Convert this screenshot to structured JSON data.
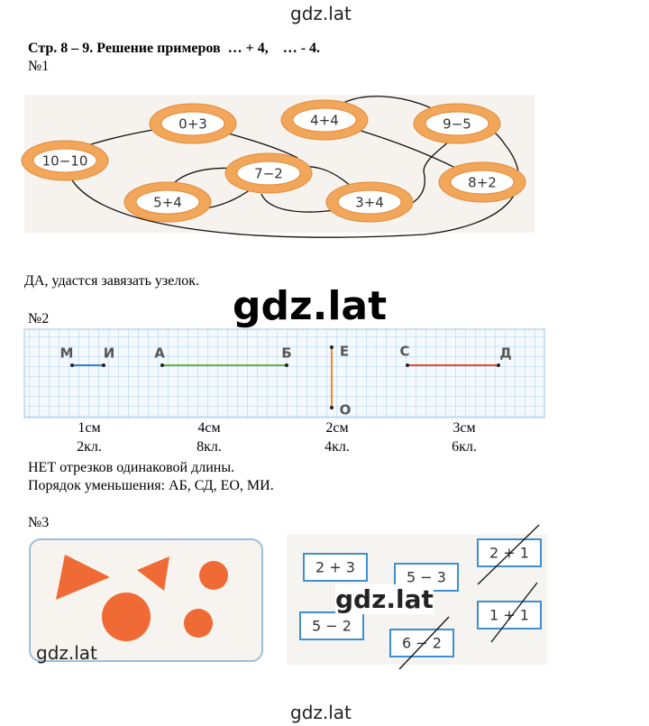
{
  "watermarks": [
    "gdz.lat",
    "gdz.lat",
    "gdz.lat",
    "gdz.lat",
    "gdz.lat"
  ],
  "header": {
    "title": "Стр. 8 – 9. Решение примеров  … + 4,    … - 4."
  },
  "task1": {
    "label": "№1",
    "ovals": [
      "0+3",
      "4+4",
      "9−5",
      "10−10",
      "7−2",
      "8+2",
      "5+4",
      "3+4"
    ],
    "answer": "ДА, удастся завязать узелок."
  },
  "task2": {
    "label": "№2",
    "points": [
      "М",
      "И",
      "А",
      "Б",
      "Е",
      "О",
      "С",
      "Д"
    ],
    "lengths": [
      "1см",
      "4см",
      "2см",
      "3см"
    ],
    "cells": [
      "2кл.",
      "8кл.",
      "4кл.",
      "6кл."
    ],
    "answer_1": "НЕТ отрезков одинаковой длины.",
    "answer_2": "Порядок уменьшения: АБ, СД, ЕО, МИ."
  },
  "task3": {
    "label": "№3",
    "cards": [
      "2 + 3",
      "5 − 3",
      "2 + 1",
      "5 − 2",
      "1 + 1",
      "6 − 2"
    ]
  }
}
